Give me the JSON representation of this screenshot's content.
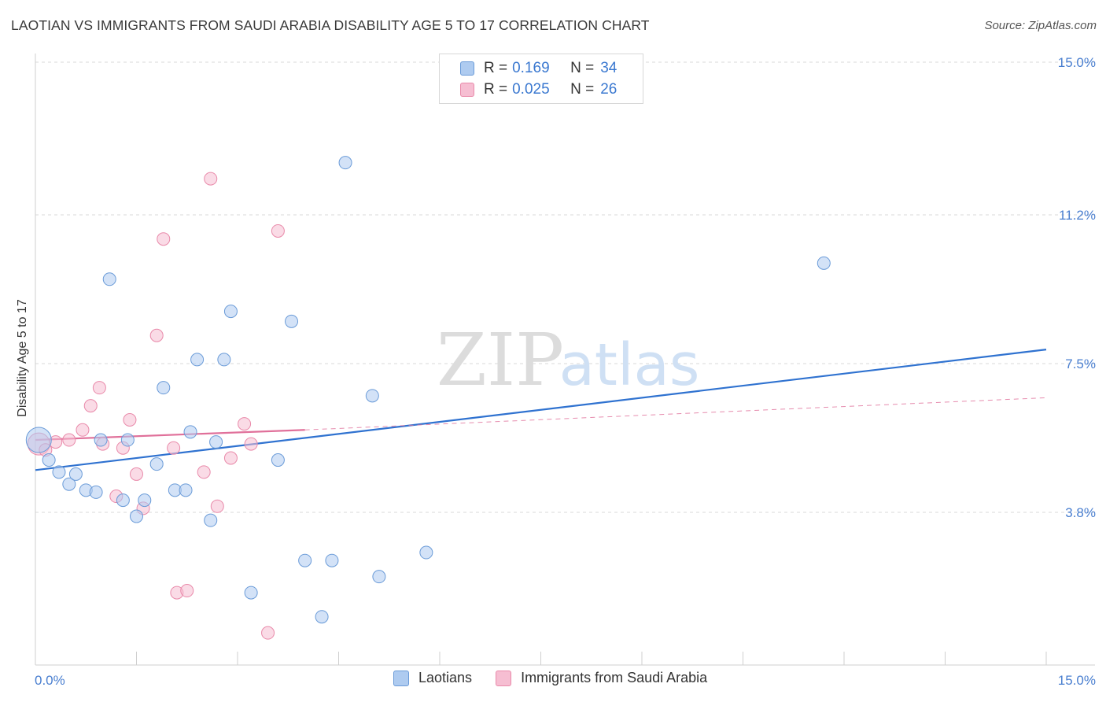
{
  "header": {
    "title": "LAOTIAN VS IMMIGRANTS FROM SAUDI ARABIA DISABILITY AGE 5 TO 17 CORRELATION CHART",
    "source": "Source: ZipAtlas.com"
  },
  "watermark": {
    "zip": "ZIP",
    "atlas": "atlas"
  },
  "legend": {
    "rows": [
      {
        "r_label": "R =",
        "r_value": "0.169",
        "n_label": "N =",
        "n_value": "34"
      },
      {
        "r_label": "R =",
        "r_value": "0.025",
        "n_label": "N =",
        "n_value": "26"
      }
    ]
  },
  "bottom_legend": {
    "items": [
      "Laotians",
      "Immigrants from Saudi Arabia"
    ]
  },
  "colors": {
    "blue_fill": "#aecbf0",
    "blue_stroke": "#6a9bd8",
    "blue_line": "#2f72d0",
    "pink_fill": "#f6bed2",
    "pink_stroke": "#e98aaa",
    "pink_line": "#e0709a",
    "tick_text": "#4a7fd0"
  },
  "chart_data": {
    "type": "scatter",
    "title": "LAOTIAN VS IMMIGRANTS FROM SAUDI ARABIA DISABILITY AGE 5 TO 17 CORRELATION CHART",
    "xlabel": "",
    "ylabel": "Disability Age 5 to 17",
    "xlim": [
      0,
      15
    ],
    "ylim": [
      0,
      15
    ],
    "x_tick_labels": [
      "0.0%",
      "15.0%"
    ],
    "y_ticks": [
      3.8,
      7.5,
      11.2,
      15.0
    ],
    "y_tick_labels": [
      "3.8%",
      "7.5%",
      "11.2%",
      "15.0%"
    ],
    "grid": true,
    "series": [
      {
        "name": "Laotians",
        "r": 0.169,
        "n": 34,
        "points": [
          [
            0.05,
            5.6
          ],
          [
            0.2,
            5.1
          ],
          [
            0.35,
            4.8
          ],
          [
            0.5,
            4.5
          ],
          [
            0.6,
            4.75
          ],
          [
            0.75,
            4.35
          ],
          [
            0.9,
            4.3
          ],
          [
            0.97,
            5.6
          ],
          [
            1.1,
            9.6
          ],
          [
            1.3,
            4.1
          ],
          [
            1.37,
            5.6
          ],
          [
            1.5,
            3.7
          ],
          [
            1.62,
            4.1
          ],
          [
            1.8,
            5.0
          ],
          [
            1.9,
            6.9
          ],
          [
            2.07,
            4.35
          ],
          [
            2.23,
            4.35
          ],
          [
            2.3,
            5.8
          ],
          [
            2.4,
            7.6
          ],
          [
            2.6,
            3.6
          ],
          [
            2.68,
            5.55
          ],
          [
            2.8,
            7.6
          ],
          [
            2.9,
            8.8
          ],
          [
            3.2,
            1.8
          ],
          [
            3.6,
            5.1
          ],
          [
            3.8,
            8.55
          ],
          [
            4.0,
            2.6
          ],
          [
            4.25,
            1.2
          ],
          [
            4.4,
            2.6
          ],
          [
            4.6,
            12.5
          ],
          [
            5.0,
            6.7
          ],
          [
            5.1,
            2.2
          ],
          [
            5.8,
            2.8
          ],
          [
            11.7,
            10.0
          ]
        ],
        "trend": {
          "x0": 0,
          "y0": 4.85,
          "x1": 15,
          "y1": 7.85
        }
      },
      {
        "name": "Immigrants from Saudi Arabia",
        "r": 0.025,
        "n": 26,
        "points": [
          [
            0.05,
            5.5
          ],
          [
            0.15,
            5.35
          ],
          [
            0.3,
            5.55
          ],
          [
            0.7,
            5.85
          ],
          [
            0.5,
            5.6
          ],
          [
            0.82,
            6.45
          ],
          [
            0.95,
            6.9
          ],
          [
            1.0,
            5.5
          ],
          [
            1.2,
            4.2
          ],
          [
            1.3,
            5.4
          ],
          [
            1.4,
            6.1
          ],
          [
            1.5,
            4.75
          ],
          [
            1.6,
            3.9
          ],
          [
            1.8,
            8.2
          ],
          [
            1.9,
            10.6
          ],
          [
            2.05,
            5.4
          ],
          [
            2.1,
            1.8
          ],
          [
            2.25,
            1.85
          ],
          [
            2.5,
            4.8
          ],
          [
            2.6,
            12.1
          ],
          [
            2.7,
            3.95
          ],
          [
            2.9,
            5.15
          ],
          [
            3.1,
            6.0
          ],
          [
            3.2,
            5.5
          ],
          [
            3.45,
            0.8
          ],
          [
            3.6,
            10.8
          ]
        ],
        "trend_solid": {
          "x0": 0,
          "y0": 5.6,
          "x1": 4.0,
          "y1": 5.85
        },
        "trend_dashed": {
          "x0": 4.0,
          "y0": 5.85,
          "x1": 15,
          "y1": 6.65
        }
      }
    ]
  }
}
